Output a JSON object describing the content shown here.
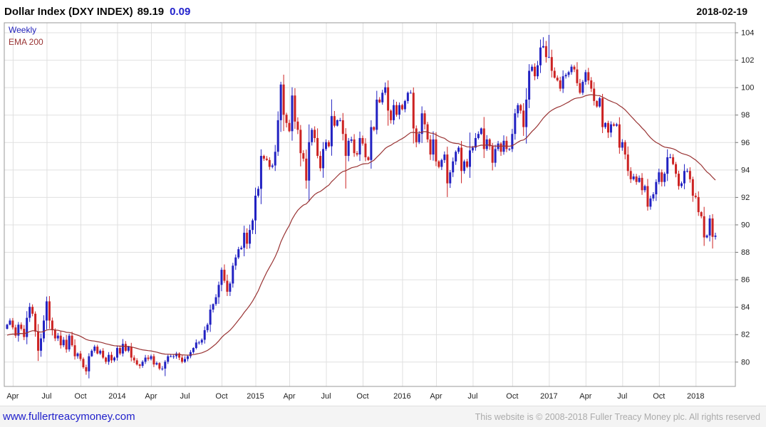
{
  "header": {
    "title": "Dollar Index (DXY INDEX)",
    "price": "89.19",
    "change": "0.09",
    "date": "2018-02-19"
  },
  "legend": {
    "period": "Weekly",
    "overlay": "EMA 200"
  },
  "footer": {
    "site": "www.fullertreacymoney.com",
    "copyright": "This website is © 2008-2018 Fuller Treacy Money plc. All rights reserved"
  },
  "colors": {
    "up": "#2222c2",
    "down": "#cc2222",
    "ema": "#993333",
    "grid": "#e0e0e0",
    "border": "#999999",
    "axis": "#777777",
    "text": "#222222",
    "accent_blue": "#2222cc"
  },
  "chart_data": {
    "type": "candlestick",
    "title": "Dollar Index (DXY INDEX)",
    "period": "Weekly",
    "overlay": "EMA 200",
    "last_close": 89.19,
    "change": 0.09,
    "as_of_date": "2018-02-19",
    "grid": true,
    "legend_position": "top-left",
    "ylim": [
      78.2,
      104.7
    ],
    "yticks": [
      80,
      82,
      84,
      86,
      88,
      90,
      92,
      94,
      96,
      98,
      100,
      102,
      104
    ],
    "x_axis_labels": [
      {
        "label": "Apr",
        "week": 2
      },
      {
        "label": "Jul",
        "week": 14
      },
      {
        "label": "Oct",
        "week": 26
      },
      {
        "label": "2014",
        "week": 39
      },
      {
        "label": "Apr",
        "week": 51
      },
      {
        "label": "Jul",
        "week": 63
      },
      {
        "label": "Oct",
        "week": 76
      },
      {
        "label": "2015",
        "week": 88
      },
      {
        "label": "Apr",
        "week": 100
      },
      {
        "label": "Jul",
        "week": 113
      },
      {
        "label": "Oct",
        "week": 126
      },
      {
        "label": "2016",
        "week": 140
      },
      {
        "label": "Apr",
        "week": 152
      },
      {
        "label": "Jul",
        "week": 165
      },
      {
        "label": "Oct",
        "week": 179
      },
      {
        "label": "2017",
        "week": 192
      },
      {
        "label": "Apr",
        "week": 205
      },
      {
        "label": "Jul",
        "week": 218
      },
      {
        "label": "Oct",
        "week": 231
      },
      {
        "label": "2018",
        "week": 244
      }
    ],
    "start_close": 82.4,
    "weekly_closes": [
      82.7,
      83.0,
      82.5,
      81.9,
      82.7,
      82.4,
      81.8,
      83.2,
      84.0,
      83.5,
      82.2,
      80.8,
      81.7,
      83.0,
      84.4,
      83.0,
      82.3,
      81.7,
      81.9,
      81.2,
      81.6,
      80.9,
      81.9,
      81.2,
      80.4,
      80.6,
      80.2,
      79.6,
      79.3,
      80.4,
      80.8,
      81.1,
      80.6,
      80.8,
      80.3,
      80.0,
      80.5,
      80.1,
      80.3,
      81.0,
      80.6,
      81.3,
      80.8,
      81.1,
      80.3,
      80.1,
      79.8,
      79.7,
      80.0,
      80.3,
      80.2,
      80.4,
      79.8,
      79.9,
      79.5,
      79.5,
      80.0,
      80.4,
      80.4,
      80.4,
      80.6,
      80.3,
      80.0,
      80.2,
      80.4,
      80.7,
      81.0,
      81.4,
      81.4,
      81.6,
      82.3,
      82.7,
      83.8,
      84.2,
      84.7,
      85.6,
      86.7,
      85.9,
      85.1,
      85.7,
      87.0,
      87.6,
      88.2,
      88.3,
      89.4,
      88.6,
      89.6,
      90.3,
      92.1,
      92.6,
      95.0,
      94.8,
      94.7,
      94.2,
      94.3,
      95.3,
      97.6,
      100.2,
      98.0,
      97.4,
      96.8,
      99.4,
      97.5,
      96.9,
      95.2,
      94.8,
      93.2,
      96.0,
      96.9,
      96.3,
      95.0,
      94.1,
      95.5,
      96.0,
      95.7,
      97.9,
      97.2,
      97.6,
      97.6,
      96.6,
      95.0,
      96.1,
      96.2,
      95.2,
      95.1,
      96.3,
      95.9,
      94.9,
      94.7,
      97.1,
      96.9,
      99.1,
      98.9,
      99.6,
      100.0,
      98.3,
      97.6,
      98.7,
      98.0,
      98.7,
      98.4,
      99.0,
      99.6,
      99.6,
      97.0,
      96.0,
      96.6,
      98.1,
      97.3,
      96.2,
      95.1,
      96.2,
      94.6,
      94.2,
      94.7,
      95.1,
      93.0,
      93.8,
      94.6,
      95.3,
      95.6,
      93.9,
      94.6,
      94.2,
      95.4,
      95.6,
      96.3,
      96.6,
      97.0,
      95.5,
      96.2,
      95.7,
      94.5,
      95.5,
      95.9,
      95.3,
      96.1,
      95.5,
      95.5,
      96.6,
      98.1,
      98.7,
      98.3,
      97.1,
      99.1,
      101.2,
      101.5,
      100.8,
      101.6,
      102.9,
      103.0,
      102.2,
      102.2,
      101.2,
      100.7,
      100.5,
      99.9,
      100.8,
      100.9,
      101.1,
      101.5,
      101.3,
      100.3,
      99.6,
      100.4,
      101.1,
      100.5,
      99.9,
      99.0,
      98.6,
      99.2,
      97.1,
      97.4,
      96.7,
      97.3,
      97.2,
      97.3,
      95.6,
      96.0,
      95.1,
      93.9,
      93.3,
      93.5,
      93.1,
      93.4,
      92.5,
      92.8,
      91.3,
      91.9,
      92.2,
      93.1,
      93.8,
      93.1,
      93.7,
      94.9,
      94.9,
      94.4,
      93.7,
      92.8,
      93.0,
      93.9,
      93.9,
      93.3,
      92.1,
      92.0,
      90.9,
      90.6,
      89.06,
      89.2,
      90.44,
      89.1,
      89.19
    ],
    "overrides": {
      "14": {
        "high": 84.75
      },
      "28": {
        "low": 79.05
      },
      "56": {
        "low": 78.95
      },
      "76": {
        "high": 86.87
      },
      "97": {
        "high": 100.4
      },
      "101": {
        "high": 100.0
      },
      "120": {
        "low": 92.62
      },
      "134": {
        "high": 100.35
      },
      "135": {
        "high": 100.5,
        "low": 97.2
      },
      "156": {
        "low": 92.0
      },
      "164": {
        "high": 96.7,
        "low": 93.4
      },
      "184": {
        "low": 95.9
      },
      "190": {
        "high": 103.65
      },
      "192": {
        "high": 103.82
      },
      "227": {
        "low": 91.01
      },
      "235": {
        "high": 95.15
      },
      "247": {
        "low": 88.44
      },
      "250": {
        "low": 88.25
      },
      "251": {
        "high": 89.4,
        "low": 88.9
      }
    },
    "ema_period": 40,
    "ema_seed": 81.9
  }
}
